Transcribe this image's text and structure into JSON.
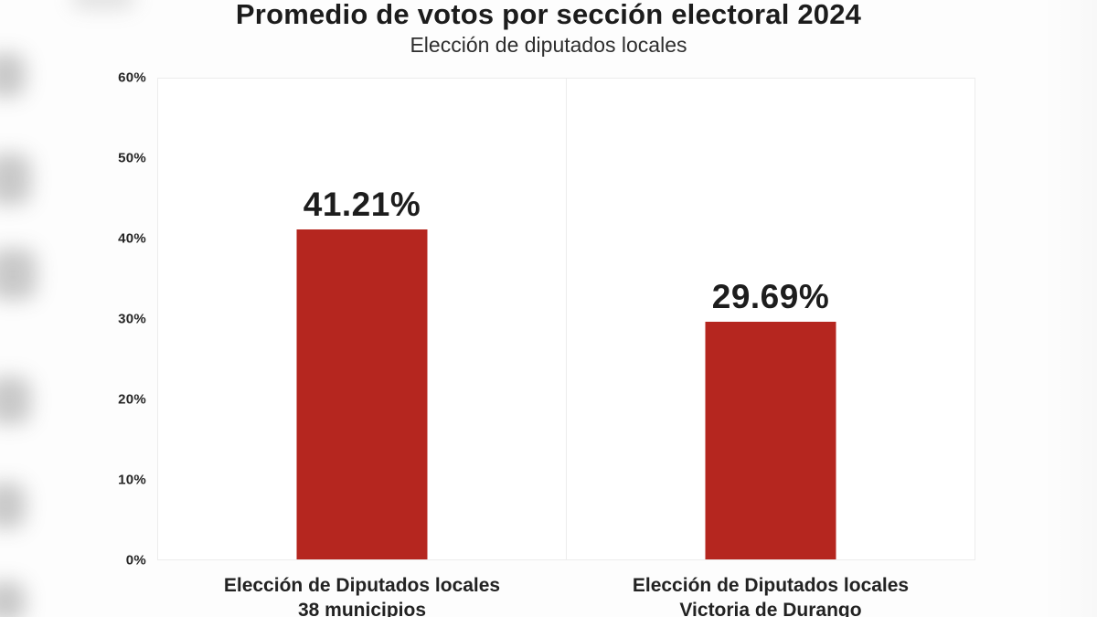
{
  "chart_data": {
    "type": "bar",
    "title": "Promedio de votos por sección electoral 2024",
    "subtitle": "Elección de diputados locales",
    "xlabel": "",
    "ylabel": "",
    "ylim": [
      0,
      60
    ],
    "yticks": [
      "60%",
      "50%",
      "40%",
      "30%",
      "20%",
      "10%",
      "0%"
    ],
    "grid": false,
    "legend": "none",
    "bar_color": "#b5261f",
    "text_color": "#1d1d1d",
    "panel_border_color": "#ececec",
    "series": [
      {
        "category_line1": "Elección de Diputados locales",
        "category_line2": "38 municipios",
        "value": 41.21,
        "label": "41.21%"
      },
      {
        "category_line1": "Elección de Diputados locales",
        "category_line2": "Victoria de Durango",
        "value": 29.69,
        "label": "29.69%"
      }
    ]
  }
}
